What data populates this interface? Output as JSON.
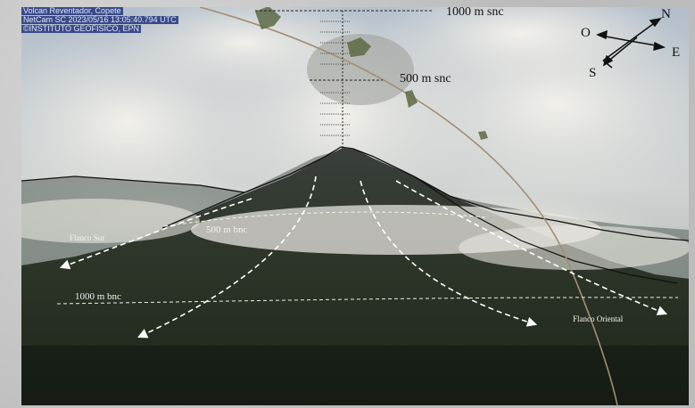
{
  "overlay": {
    "camera_lines": [
      "Volcan Reventador, Copete",
      "NetCam SC 2023/05/16 13:05:40.794 UTC",
      "©INSTITUTO GEOFISICO, EPN"
    ]
  },
  "labels": {
    "height_1000_above": "1000 m snc",
    "height_500_above": "500 m snc",
    "level_500_below": "500 m bnc",
    "level_1000_below": "1000 m bnc",
    "south_flank": "Flanco Sur",
    "east_flank": "Flanco Oriental"
  },
  "compass": {
    "north": "N",
    "east": "E",
    "south": "S",
    "west": "O"
  },
  "colors": {
    "sky_top": "#a9b6c4",
    "cloud": "#eceae4",
    "mountain": "#2a3325",
    "annotation_line": "#ffffff",
    "camera_text_bg": "#3a4a86"
  }
}
